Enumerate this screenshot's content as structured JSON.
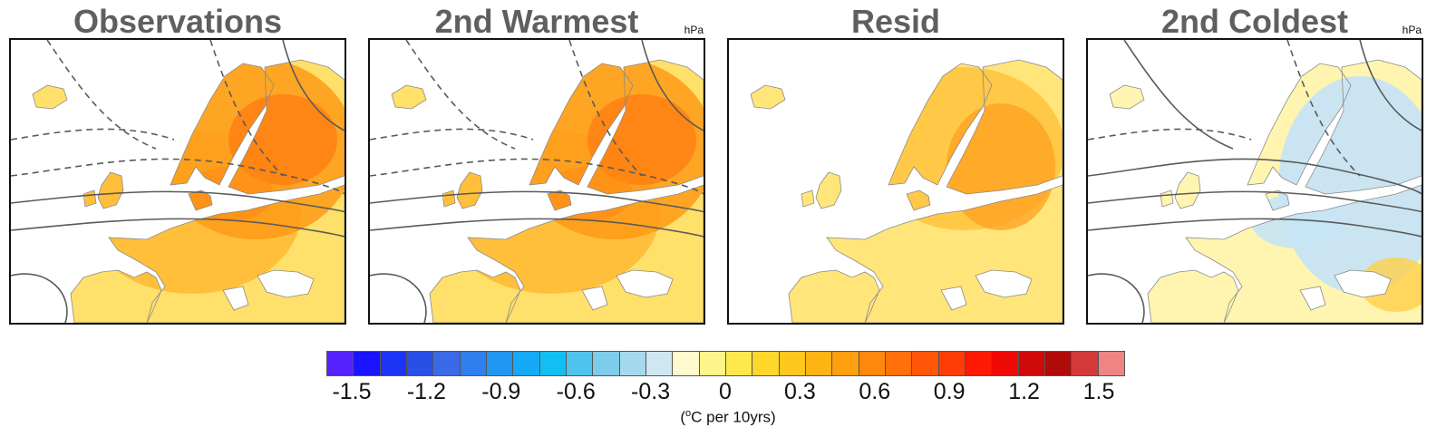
{
  "figure": {
    "panels": [
      {
        "title": "Observations",
        "unit": "",
        "scheme": "warm"
      },
      {
        "title": "2nd Warmest",
        "unit": "hPa",
        "scheme": "warm"
      },
      {
        "title": "Resid",
        "unit": "",
        "scheme": "resid"
      },
      {
        "title": "2nd Coldest",
        "unit": "hPa",
        "scheme": "cold"
      }
    ],
    "colorbar": {
      "ticks": [
        "-1.5",
        "-1.2",
        "-0.9",
        "-0.6",
        "-0.3",
        "0",
        "0.3",
        "0.6",
        "0.9",
        "1.2",
        "1.5"
      ],
      "label_prefix": "(",
      "label_sup": "o",
      "label_suffix": "C per 10yrs)",
      "colors": [
        "#5522ff",
        "#1a14ff",
        "#1d33f5",
        "#2a4fe6",
        "#3a6ae6",
        "#2f7fee",
        "#2197f2",
        "#14aaf5",
        "#12bff2",
        "#4fc3ee",
        "#7cccea",
        "#a7d9ee",
        "#cfe7f2",
        "#fffacd",
        "#fff48a",
        "#ffe84e",
        "#ffd62a",
        "#ffc61e",
        "#ffb416",
        "#ff9e10",
        "#ff880c",
        "#ff700a",
        "#ff5608",
        "#ff3c08",
        "#ff1a06",
        "#f00a06",
        "#d00a0a",
        "#b00a0a",
        "#d23a3a",
        "#ee8484"
      ]
    }
  }
}
